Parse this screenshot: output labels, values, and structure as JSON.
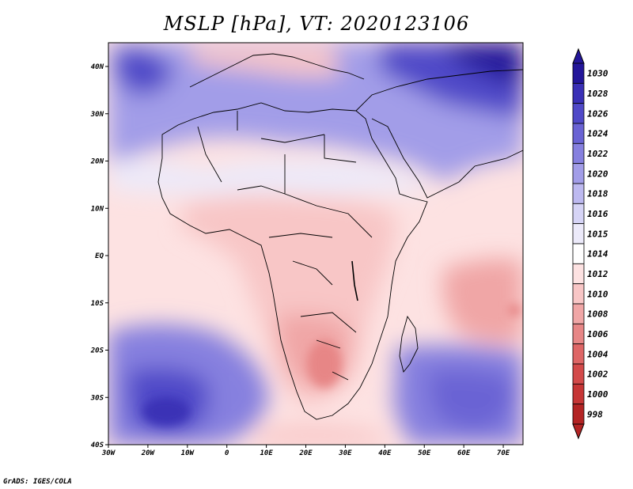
{
  "title": "MSLP [hPa], VT: 2020123106",
  "credit": "GrADS: IGES/COLA",
  "map": {
    "x_ticks": [
      "30W",
      "20W",
      "10W",
      "0",
      "10E",
      "20E",
      "30E",
      "40E",
      "50E",
      "60E",
      "70E"
    ],
    "y_ticks": [
      "40N",
      "30N",
      "20N",
      "10N",
      "EQ",
      "10S",
      "20S",
      "30S",
      "40S"
    ],
    "region": "Africa",
    "lon_range": [
      -30,
      75
    ],
    "lat_range": [
      -40,
      45
    ]
  },
  "legend": {
    "levels": [
      "1030",
      "1028",
      "1026",
      "1024",
      "1022",
      "1020",
      "1018",
      "1016",
      "1015",
      "1014",
      "1012",
      "1010",
      "1008",
      "1006",
      "1004",
      "1002",
      "1000",
      "998"
    ],
    "colors": [
      "#23169a",
      "#3a30b6",
      "#5049c8",
      "#6a63d4",
      "#8680df",
      "#a29de8",
      "#bdb9f0",
      "#d6d4f6",
      "#eceafa",
      "#ffffff",
      "#fde2e2",
      "#f8c6c6",
      "#f0a6a6",
      "#e78686",
      "#de6666",
      "#d34a4a",
      "#c63636",
      "#b32424"
    ]
  }
}
